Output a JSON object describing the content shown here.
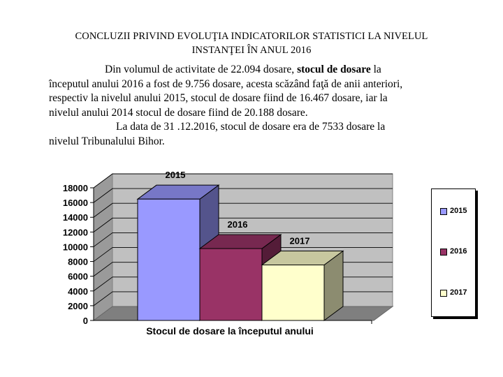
{
  "heading": {
    "line1": "CONCLUZII PRIVIND EVOLUŢIA INDICATORILOR STATISTICI LA NIVELUL",
    "line2": "INSTANŢEI ÎN ANUL 2016"
  },
  "paragraph1": {
    "before_bold": "Din volumul de activitate de 22.094 dosare, ",
    "bold": "stocul de dosare",
    "after_bold_line1": " la",
    "line2": "începutul anului 2016 a fost de 9.756 dosare, acesta scăzând faţă de anii anteriori,",
    "line3": "respectiv la nivelul anului 2015,  stocul de dosare fiind de 16.467 dosare, iar la",
    "line4": "nivelul anului 2014 stocul de dosare fiind de 20.188 dosare."
  },
  "paragraph2": {
    "line1": "La data de 31 .12.2016, stocul de dosare era de 7533 dosare la",
    "line2": "nivelul Tribunalului Bihor."
  },
  "chart_data": {
    "type": "bar",
    "style": "3d",
    "categories": [
      "Stocul de dosare la începutul anului"
    ],
    "xlabel": "Stocul de dosare la începutul anului",
    "ylabel": "",
    "ylim": [
      0,
      18000
    ],
    "yticks": [
      0,
      2000,
      4000,
      6000,
      8000,
      10000,
      12000,
      14000,
      16000,
      18000
    ],
    "grid": true,
    "legend_position": "right",
    "series": [
      {
        "name": "2015",
        "values": [
          16467
        ],
        "color": "#9999ff",
        "label": "2015"
      },
      {
        "name": "2016",
        "values": [
          9756
        ],
        "color": "#993366",
        "label": "2016"
      },
      {
        "name": "2017",
        "values": [
          7533
        ],
        "color": "#ffffcc",
        "label": "2017"
      }
    ]
  }
}
